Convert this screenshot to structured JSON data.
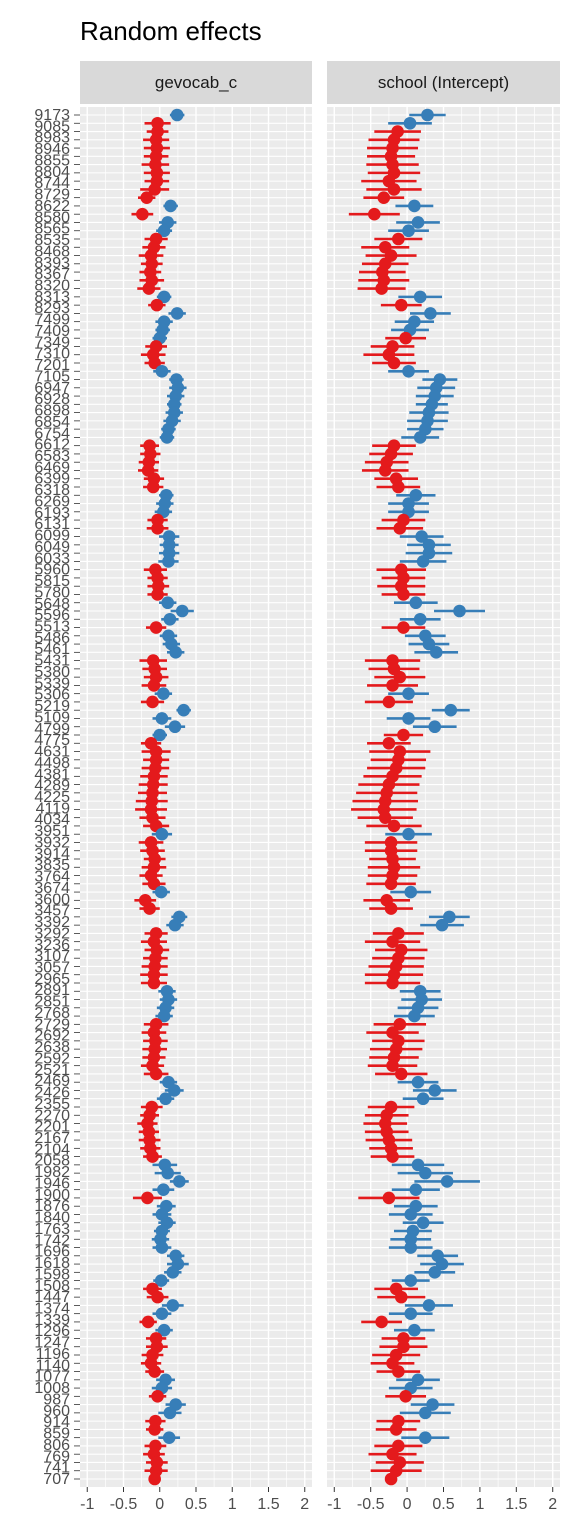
{
  "chart_data": {
    "type": "scatter",
    "subtype": "dot-and-whisker",
    "title": "Random effects",
    "xlim": [
      -1.1,
      2.1
    ],
    "x_ticks": [
      -1,
      -0.5,
      0,
      0.5,
      1,
      1.5,
      2
    ],
    "x_tick_labels": [
      "-1",
      "-0.5",
      "0",
      "0.5",
      "1",
      "1.5",
      "2"
    ],
    "grid": true,
    "colors": {
      "positive": "#377EB8",
      "negative": "#E41A1C",
      "panel_bg": "#EBEBEB",
      "strip_bg": "#D9D9D9",
      "grid": "#FFFFFF"
    },
    "y_tick_labels_visible": [
      "9173",
      "9085",
      "8983",
      "8946",
      "8855",
      "8804",
      "8744",
      "8729",
      "8622",
      "8580",
      "8565",
      "8535",
      "8468",
      "8393",
      "8367",
      "8320",
      "8313",
      "8293",
      "7499",
      "7409",
      "7349",
      "7310",
      "7201",
      "7105",
      "6947",
      "6928",
      "6898",
      "6854",
      "6754",
      "6612",
      "6583",
      "6469",
      "6399",
      "6318",
      "6269",
      "6193",
      "6131",
      "6099",
      "6049",
      "6033",
      "5960",
      "5815",
      "5780",
      "5648",
      "5596",
      "5513",
      "5486",
      "5461",
      "5431",
      "5380",
      "5339",
      "5306",
      "5219",
      "5109",
      "4799",
      "4775",
      "4631",
      "4498",
      "4381",
      "4289",
      "4225",
      "4119",
      "4034",
      "3951",
      "3932",
      "3914",
      "3835",
      "3764",
      "3674",
      "3600",
      "3457",
      "3392",
      "3292",
      "3236",
      "3107",
      "3057",
      "2965",
      "2891",
      "2851",
      "2768",
      "2729",
      "2692",
      "2638",
      "2592",
      "2521",
      "2469",
      "2426",
      "2355",
      "2270",
      "2201",
      "2167",
      "2104",
      "2058",
      "1982",
      "1946",
      "1900",
      "1876",
      "1840",
      "1763",
      "1742",
      "1696",
      "1618",
      "1598",
      "1508",
      "1447",
      "1374",
      "1339",
      "1296",
      "1247",
      "1196",
      "1140",
      "1077",
      "1008",
      "987",
      "960",
      "914",
      "859",
      "806",
      "769",
      "741",
      "707"
    ],
    "panels": [
      {
        "name": "gevocab_c",
        "estimates": [
          0.24,
          -0.03,
          -0.03,
          -0.05,
          -0.04,
          -0.05,
          -0.06,
          -0.04,
          -0.04,
          -0.07,
          -0.18,
          0.15,
          -0.24,
          0.11,
          0.06,
          -0.05,
          -0.08,
          -0.12,
          -0.11,
          -0.13,
          -0.11,
          -0.15,
          0.06,
          -0.04,
          0.24,
          0.06,
          0.04,
          0.0,
          -0.05,
          -0.09,
          -0.07,
          0.03,
          0.23,
          0.25,
          0.22,
          0.2,
          0.2,
          0.17,
          0.12,
          0.1,
          -0.14,
          -0.13,
          -0.15,
          -0.16,
          -0.08,
          -0.09,
          0.09,
          0.07,
          0.05,
          -0.03,
          -0.03,
          0.13,
          0.13,
          0.13,
          0.12,
          -0.06,
          -0.03,
          -0.02,
          -0.03,
          0.11,
          0.31,
          0.14,
          -0.05,
          0.12,
          0.16,
          0.22,
          -0.09,
          -0.07,
          -0.05,
          -0.08,
          0.05,
          -0.1,
          0.33,
          0.03,
          0.21,
          0.0,
          -0.12,
          -0.05,
          -0.05,
          -0.06,
          -0.08,
          -0.09,
          -0.1,
          -0.11,
          -0.12,
          -0.1,
          -0.05,
          0.03,
          -0.12,
          -0.1,
          -0.07,
          -0.08,
          -0.12,
          -0.08,
          0.02,
          -0.2,
          -0.14,
          0.27,
          0.21,
          -0.05,
          -0.08,
          -0.04,
          -0.06,
          -0.07,
          -0.08,
          -0.08,
          0.1,
          0.12,
          0.08,
          0.06,
          -0.05,
          -0.08,
          -0.06,
          -0.07,
          -0.08,
          -0.1,
          -0.05,
          0.12,
          0.2,
          0.08,
          -0.11,
          -0.14,
          -0.17,
          -0.15,
          -0.14,
          -0.13,
          -0.1,
          0.07,
          0.11,
          0.27,
          0.05,
          -0.17,
          0.09,
          0.03,
          0.1,
          0.03,
          0.01,
          0.03,
          0.22,
          0.25,
          0.18,
          0.02,
          -0.1,
          -0.03,
          0.18,
          0.03,
          -0.16,
          0.06,
          -0.05,
          -0.04,
          -0.1,
          -0.12,
          -0.07,
          0.08,
          0.03,
          -0.03,
          0.22,
          0.14,
          -0.06,
          -0.07,
          0.13,
          -0.06,
          -0.08,
          -0.04,
          -0.05,
          -0.07
        ],
        "errors": [
          0.1,
          0.18,
          0.15,
          0.18,
          0.18,
          0.17,
          0.19,
          0.18,
          0.17,
          0.2,
          0.12,
          0.1,
          0.15,
          0.12,
          0.11,
          0.16,
          0.16,
          0.17,
          0.15,
          0.15,
          0.17,
          0.16,
          0.1,
          0.12,
          0.12,
          0.12,
          0.1,
          0.1,
          0.15,
          0.17,
          0.14,
          0.12,
          0.1,
          0.12,
          0.12,
          0.1,
          0.12,
          0.12,
          0.1,
          0.1,
          0.13,
          0.14,
          0.14,
          0.14,
          0.14,
          0.14,
          0.1,
          0.12,
          0.12,
          0.14,
          0.15,
          0.14,
          0.13,
          0.14,
          0.14,
          0.16,
          0.14,
          0.15,
          0.14,
          0.12,
          0.16,
          0.12,
          0.14,
          0.12,
          0.12,
          0.12,
          0.19,
          0.17,
          0.17,
          0.17,
          0.12,
          0.16,
          0.1,
          0.13,
          0.14,
          0.1,
          0.14,
          0.2,
          0.18,
          0.19,
          0.19,
          0.2,
          0.2,
          0.22,
          0.22,
          0.18,
          0.18,
          0.14,
          0.17,
          0.17,
          0.15,
          0.17,
          0.16,
          0.16,
          0.12,
          0.15,
          0.14,
          0.11,
          0.12,
          0.16,
          0.18,
          0.17,
          0.17,
          0.18,
          0.19,
          0.18,
          0.12,
          0.12,
          0.12,
          0.12,
          0.17,
          0.17,
          0.17,
          0.17,
          0.16,
          0.16,
          0.17,
          0.12,
          0.13,
          0.12,
          0.15,
          0.13,
          0.14,
          0.14,
          0.15,
          0.14,
          0.13,
          0.17,
          0.18,
          0.13,
          0.15,
          0.2,
          0.13,
          0.13,
          0.12,
          0.11,
          0.12,
          0.13,
          0.12,
          0.15,
          0.12,
          0.11,
          0.13,
          0.15,
          0.15,
          0.13,
          0.12,
          0.12,
          0.14,
          0.15,
          0.15,
          0.14,
          0.13,
          0.13,
          0.14,
          0.12,
          0.14,
          0.16,
          0.14,
          0.12,
          0.15,
          0.15,
          0.15,
          0.15,
          0.16
        ]
      },
      {
        "name": "school (Intercept)",
        "estimates": [
          0.28,
          0.04,
          -0.13,
          -0.18,
          -0.2,
          -0.22,
          -0.2,
          -0.18,
          -0.25,
          -0.18,
          -0.32,
          0.1,
          -0.45,
          0.15,
          0.02,
          -0.12,
          -0.3,
          -0.22,
          -0.3,
          -0.34,
          -0.32,
          -0.35,
          0.18,
          -0.08,
          0.32,
          0.1,
          0.04,
          -0.02,
          -0.2,
          -0.25,
          -0.18,
          0.02,
          0.45,
          0.4,
          0.38,
          0.34,
          0.3,
          0.28,
          0.25,
          0.18,
          -0.18,
          -0.22,
          -0.28,
          -0.3,
          -0.15,
          -0.12,
          0.12,
          0.02,
          0.02,
          -0.05,
          -0.1,
          0.2,
          0.3,
          0.3,
          0.22,
          -0.08,
          -0.05,
          -0.08,
          -0.05,
          0.12,
          0.72,
          0.18,
          -0.05,
          0.25,
          0.3,
          0.4,
          -0.2,
          -0.18,
          -0.1,
          -0.2,
          0.02,
          -0.25,
          0.6,
          0.02,
          0.38,
          -0.05,
          -0.25,
          -0.1,
          -0.12,
          -0.15,
          -0.2,
          -0.25,
          -0.28,
          -0.3,
          -0.32,
          -0.3,
          -0.18,
          0.02,
          -0.22,
          -0.22,
          -0.2,
          -0.18,
          -0.2,
          -0.22,
          0.05,
          -0.28,
          -0.22,
          0.58,
          0.48,
          -0.12,
          -0.2,
          -0.08,
          -0.12,
          -0.15,
          -0.18,
          -0.2,
          0.18,
          0.2,
          0.15,
          0.1,
          -0.1,
          -0.2,
          -0.12,
          -0.15,
          -0.18,
          -0.2,
          -0.08,
          0.15,
          0.38,
          0.22,
          -0.22,
          -0.28,
          -0.3,
          -0.28,
          -0.25,
          -0.22,
          -0.2,
          0.15,
          0.25,
          0.55,
          0.12,
          -0.25,
          0.12,
          0.05,
          0.22,
          0.08,
          0.05,
          0.05,
          0.42,
          0.48,
          0.38,
          0.05,
          -0.15,
          -0.08,
          0.3,
          0.05,
          -0.35,
          0.1,
          -0.05,
          -0.05,
          -0.15,
          -0.2,
          -0.12,
          0.15,
          0.05,
          -0.02,
          0.35,
          0.25,
          -0.12,
          -0.15,
          0.25,
          -0.12,
          -0.2,
          -0.1,
          -0.15,
          -0.22
        ],
        "errors": [
          0.25,
          0.3,
          0.32,
          0.35,
          0.35,
          0.33,
          0.36,
          0.36,
          0.38,
          0.38,
          0.28,
          0.26,
          0.35,
          0.3,
          0.28,
          0.33,
          0.33,
          0.35,
          0.32,
          0.32,
          0.35,
          0.33,
          0.3,
          0.28,
          0.28,
          0.27,
          0.26,
          0.28,
          0.3,
          0.35,
          0.3,
          0.28,
          0.24,
          0.26,
          0.26,
          0.22,
          0.27,
          0.28,
          0.25,
          0.26,
          0.3,
          0.3,
          0.3,
          0.32,
          0.3,
          0.3,
          0.27,
          0.28,
          0.28,
          0.3,
          0.32,
          0.3,
          0.3,
          0.32,
          0.32,
          0.34,
          0.3,
          0.33,
          0.3,
          0.3,
          0.35,
          0.28,
          0.3,
          0.28,
          0.28,
          0.3,
          0.38,
          0.35,
          0.35,
          0.35,
          0.28,
          0.33,
          0.26,
          0.3,
          0.3,
          0.27,
          0.3,
          0.42,
          0.38,
          0.4,
          0.4,
          0.42,
          0.42,
          0.45,
          0.45,
          0.38,
          0.38,
          0.32,
          0.36,
          0.36,
          0.32,
          0.36,
          0.34,
          0.34,
          0.28,
          0.32,
          0.3,
          0.28,
          0.3,
          0.35,
          0.38,
          0.36,
          0.36,
          0.38,
          0.4,
          0.38,
          0.28,
          0.28,
          0.28,
          0.28,
          0.36,
          0.36,
          0.36,
          0.36,
          0.34,
          0.34,
          0.36,
          0.28,
          0.3,
          0.28,
          0.32,
          0.3,
          0.3,
          0.3,
          0.32,
          0.3,
          0.3,
          0.36,
          0.38,
          0.45,
          0.33,
          0.42,
          0.3,
          0.3,
          0.28,
          0.26,
          0.28,
          0.3,
          0.28,
          0.3,
          0.28,
          0.26,
          0.3,
          0.33,
          0.33,
          0.3,
          0.28,
          0.28,
          0.3,
          0.33,
          0.33,
          0.3,
          0.3,
          0.3,
          0.3,
          0.28,
          0.3,
          0.35,
          0.3,
          0.28,
          0.33,
          0.33,
          0.33,
          0.33,
          0.35
        ]
      }
    ]
  }
}
